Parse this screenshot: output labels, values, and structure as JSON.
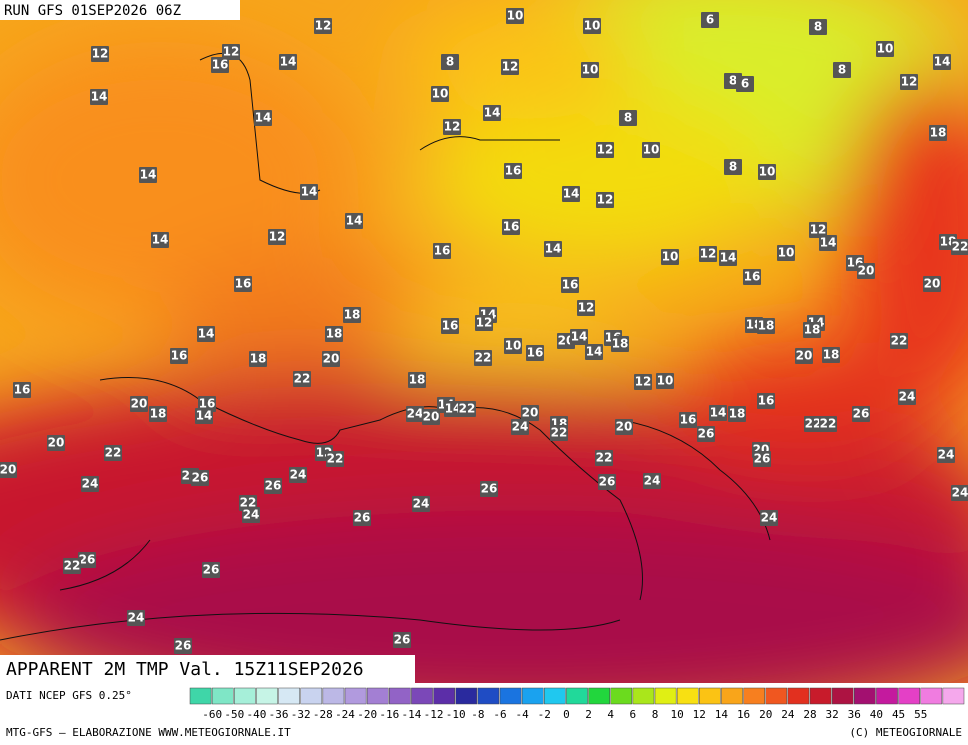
{
  "header": {
    "run": "RUN GFS 01SEP2026 06Z"
  },
  "map": {
    "title": "APPARENT 2M TMP Val. 15Z11SEP2026",
    "labels": [
      12,
      10,
      10,
      6,
      8,
      10,
      14,
      12,
      12,
      16,
      14,
      8,
      12,
      10,
      8,
      6,
      8,
      12,
      14,
      10,
      14,
      8,
      14,
      12,
      18,
      12,
      10,
      8,
      10,
      14,
      16,
      14,
      14,
      12,
      14,
      16,
      14,
      12,
      14,
      16,
      10,
      12,
      14,
      10,
      12,
      14,
      18,
      22,
      16,
      20,
      16,
      20,
      16,
      16,
      12,
      18,
      14,
      12,
      16,
      18,
      18,
      14,
      18,
      14,
      18,
      20,
      14,
      16,
      18,
      14,
      10,
      16,
      22,
      16,
      18,
      20,
      22,
      20,
      18,
      22,
      18,
      12,
      10,
      16,
      20,
      18,
      16,
      14,
      24,
      24,
      20,
      14,
      14,
      22,
      20,
      18,
      22,
      24,
      20,
      16,
      14,
      18,
      16,
      26,
      22,
      22,
      26,
      20,
      22,
      20,
      26,
      12,
      22,
      22,
      24,
      20,
      22,
      26,
      24,
      24,
      26,
      26,
      26,
      24,
      24,
      22,
      24,
      24,
      26,
      24,
      26,
      22,
      26,
      24,
      26,
      26
    ]
  },
  "legend": {
    "source": "DATI NCEP GFS 0.25°",
    "ticks": [
      -60,
      -50,
      -40,
      -36,
      -32,
      -28,
      -24,
      -20,
      -16,
      -14,
      -12,
      -10,
      -8,
      -6,
      -4,
      -2,
      0,
      2,
      4,
      6,
      8,
      10,
      12,
      14,
      16,
      20,
      24,
      28,
      32,
      36,
      40,
      45,
      55
    ]
  },
  "footer": {
    "left": "MTG-GFS — ELABORAZIONE WWW.METEOGIORNALE.IT",
    "right": "(C) METEOGIORNALE"
  }
}
